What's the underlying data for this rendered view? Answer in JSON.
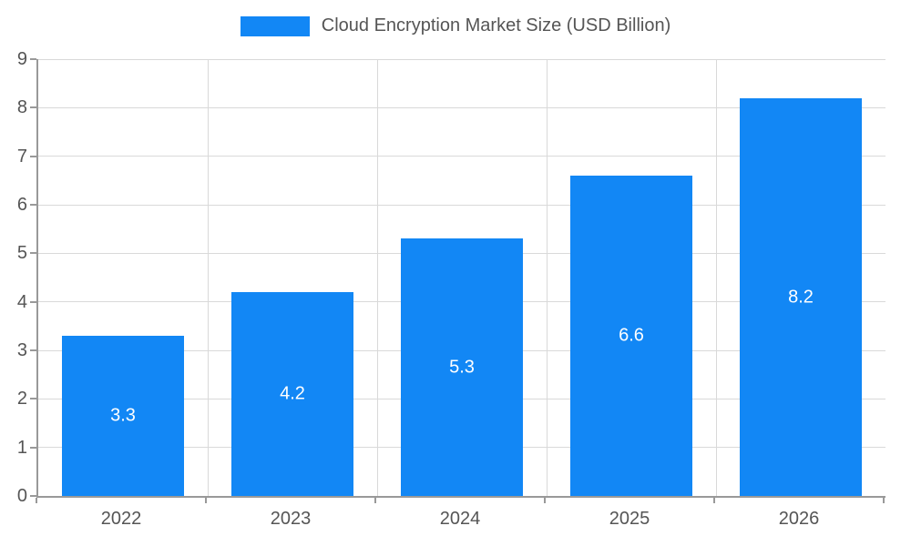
{
  "chart_data": {
    "type": "bar",
    "title": "Cloud Encryption Market Size (USD Billion)",
    "categories": [
      "2022",
      "2023",
      "2024",
      "2025",
      "2026"
    ],
    "values": [
      3.3,
      4.2,
      5.3,
      6.6,
      8.2
    ],
    "value_labels": [
      "3.3",
      "4.2",
      "5.3",
      "6.6",
      "8.2"
    ],
    "xlabel": "",
    "ylabel": "",
    "ylim": [
      0,
      9
    ],
    "yticks": [
      0,
      1,
      2,
      3,
      4,
      5,
      6,
      7,
      8,
      9
    ],
    "grid": true,
    "legend_position": "top",
    "bar_color": "#1287f5",
    "value_label_color": "#ffffff",
    "tick_label_color": "#555555",
    "grid_color": "#d9d9d9",
    "axis_color": "#999999"
  }
}
